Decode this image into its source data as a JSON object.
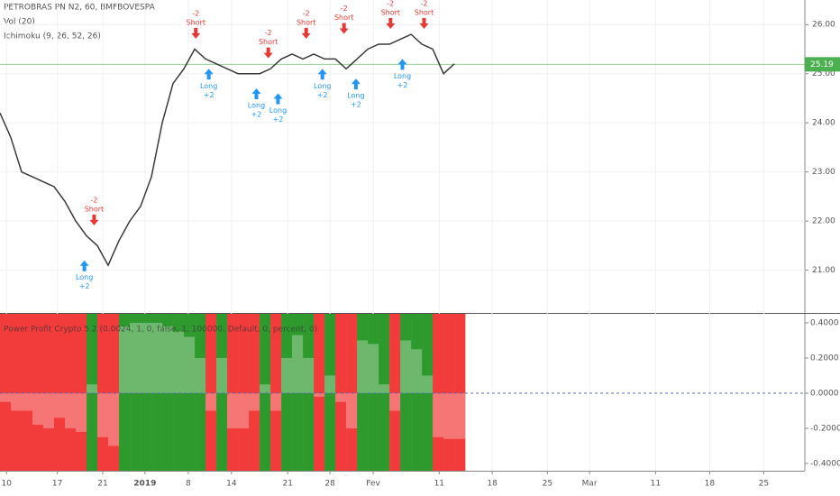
{
  "chart_data": [
    {
      "type": "line",
      "title": "PETROBRAS PN N2, 60, BMFBOVESPA",
      "indicators": [
        "Vol (20)",
        "Ichimoku (9, 26, 52, 26)"
      ],
      "x": [
        0,
        10,
        20,
        30,
        40,
        50,
        60,
        70,
        80,
        90,
        100,
        110,
        120,
        130,
        140,
        150,
        160,
        170,
        180,
        190,
        200,
        210,
        220,
        230,
        240,
        250,
        260,
        270,
        280,
        290,
        300,
        310,
        320,
        330,
        340,
        350,
        360,
        370,
        380,
        390,
        400,
        410,
        420
      ],
      "series": [
        {
          "name": "PETROBRAS PN N2",
          "color": "#3a3a3a",
          "values": [
            24.2,
            23.7,
            23.0,
            22.9,
            22.8,
            22.7,
            22.4,
            22.0,
            21.7,
            21.5,
            21.1,
            21.6,
            22.0,
            22.3,
            22.9,
            24.0,
            24.8,
            25.1,
            25.5,
            25.3,
            25.2,
            25.1,
            25.0,
            25.0,
            25.0,
            25.1,
            25.3,
            25.4,
            25.3,
            25.4,
            25.3,
            25.3,
            25.1,
            25.3,
            25.5,
            25.6,
            25.6,
            25.7,
            25.8,
            25.6,
            25.5,
            25.0,
            25.2
          ]
        }
      ],
      "last_price": 25.19,
      "last_price_color": "#4caf50",
      "signals": [
        {
          "kind": "Short",
          "qty": "-2",
          "x": 87,
          "y": 22.5
        },
        {
          "kind": "Short",
          "qty": "-2",
          "x": 181,
          "y": 26.3
        },
        {
          "kind": "Short",
          "qty": "-2",
          "x": 248,
          "y": 25.9
        },
        {
          "kind": "Short",
          "qty": "-2",
          "x": 283,
          "y": 26.3
        },
        {
          "kind": "Short",
          "qty": "-2",
          "x": 318,
          "y": 26.4
        },
        {
          "kind": "Short",
          "qty": "-2",
          "x": 361,
          "y": 26.5
        },
        {
          "kind": "Short",
          "qty": "-2",
          "x": 392,
          "y": 26.5
        },
        {
          "kind": "Long",
          "qty": "+2",
          "x": 78,
          "y": 21.2
        },
        {
          "kind": "Long",
          "qty": "+2",
          "x": 193,
          "y": 25.1
        },
        {
          "kind": "Long",
          "qty": "+2",
          "x": 237,
          "y": 24.7
        },
        {
          "kind": "Long",
          "qty": "+2",
          "x": 257,
          "y": 24.6
        },
        {
          "kind": "Long",
          "qty": "+2",
          "x": 298,
          "y": 25.1
        },
        {
          "kind": "Long",
          "qty": "+2",
          "x": 329,
          "y": 24.9
        },
        {
          "kind": "Long",
          "qty": "+2",
          "x": 372,
          "y": 25.3
        }
      ],
      "xlim": [
        0,
        744
      ],
      "xticks": [
        {
          "value": 6,
          "label": "10"
        },
        {
          "value": 53,
          "label": "17"
        },
        {
          "value": 95,
          "label": "21"
        },
        {
          "value": 134,
          "label": "2019"
        },
        {
          "value": 174,
          "label": "8"
        },
        {
          "value": 214,
          "label": "14"
        },
        {
          "value": 266,
          "label": "21"
        },
        {
          "value": 305,
          "label": "28"
        },
        {
          "value": 345,
          "label": "Fev"
        },
        {
          "value": 406,
          "label": "11"
        },
        {
          "value": 455,
          "label": "18"
        },
        {
          "value": 506,
          "label": "25"
        },
        {
          "value": 545,
          "label": "Mar"
        },
        {
          "value": 606,
          "label": "11"
        },
        {
          "value": 656,
          "label": "18"
        },
        {
          "value": 706,
          "label": "25"
        }
      ],
      "ylim": [
        20.13,
        26.5
      ],
      "yticks": [
        {
          "value": 21,
          "label": "21.00"
        },
        {
          "value": 22,
          "label": "22.00"
        },
        {
          "value": 23,
          "label": "23.00"
        },
        {
          "value": 24,
          "label": "24.00"
        },
        {
          "value": 25,
          "label": "25.00"
        },
        {
          "value": 26,
          "label": "26.00"
        }
      ],
      "grid": true
    },
    {
      "type": "step",
      "title": "Power Profit Crypto 5.2 (0.0024, 1, 0, false, 1, 100000, Default, 0, percent, 0)",
      "x": [
        0,
        10,
        20,
        30,
        40,
        50,
        60,
        70,
        80,
        90,
        100,
        110,
        120,
        130,
        140,
        150,
        160,
        170,
        180,
        190,
        200,
        210,
        220,
        230,
        240,
        250,
        260,
        270,
        280,
        290,
        300,
        310,
        320,
        330,
        340,
        350,
        360,
        370,
        380,
        390,
        400,
        410,
        420
      ],
      "values": [
        -0.05,
        -0.1,
        -0.1,
        -0.18,
        -0.2,
        -0.14,
        -0.2,
        -0.22,
        0.05,
        -0.25,
        -0.3,
        0.38,
        0.4,
        0.4,
        0.4,
        0.38,
        0.35,
        0.32,
        0.2,
        -0.1,
        0.2,
        -0.2,
        -0.2,
        -0.1,
        0.05,
        -0.1,
        0.2,
        0.33,
        0.2,
        -0.02,
        0.1,
        -0.05,
        -0.2,
        0.3,
        0.28,
        0.05,
        -0.1,
        0.3,
        0.25,
        0.1,
        -0.25,
        -0.26,
        -0.26
      ],
      "positive_color": "#2e9a2e",
      "negative_color": "#f23b3b",
      "xlim": [
        0,
        744
      ],
      "ylim": [
        -0.441,
        0.451
      ],
      "yticks": [
        {
          "value": 0.4,
          "label": "0.4000"
        },
        {
          "value": 0.2,
          "label": "0.2000"
        },
        {
          "value": 0,
          "label": "0.0000"
        },
        {
          "value": -0.2,
          "label": "-0.2000"
        },
        {
          "value": -0.4,
          "label": "-0.4000"
        }
      ]
    }
  ]
}
